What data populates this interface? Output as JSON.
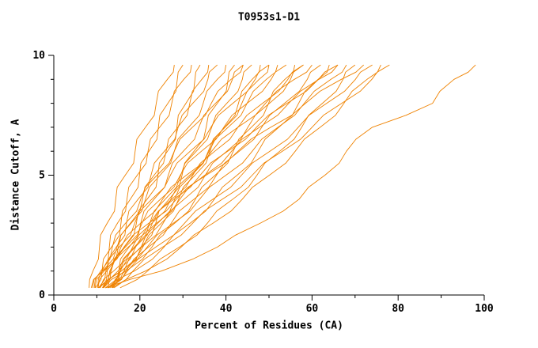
{
  "title": "T0953s1-D1",
  "chart_data": {
    "type": "line",
    "title": "T0953s1-D1",
    "xlabel": "Percent of Residues (CA)",
    "ylabel": "Distance Cutoff, A",
    "xlim": [
      0,
      100
    ],
    "ylim": [
      0,
      10
    ],
    "x_ticks_major": [
      0,
      20,
      40,
      60,
      80,
      100
    ],
    "x_ticks_minor": [
      10,
      30,
      50,
      70,
      90
    ],
    "y_ticks_major": [
      0,
      5,
      10
    ],
    "y_ticks_minor": [
      1,
      2,
      3,
      4,
      6,
      7,
      8,
      9
    ],
    "legend": "none",
    "grid": false,
    "line_color": "#ef8200",
    "background_color": "#ffffff",
    "y_levels": [
      0.3,
      1,
      2,
      3,
      4,
      5,
      6,
      7,
      8,
      9,
      9.6
    ],
    "series_x_at_y": [
      [
        8.2,
        9.1,
        10.6,
        12.4,
        14.4,
        16.6,
        18.9,
        21.3,
        23.8,
        26.4,
        28.0
      ],
      [
        9.7,
        11.2,
        13.4,
        15.6,
        17.8,
        19.9,
        22.1,
        24.3,
        26.5,
        28.7,
        30.0
      ],
      [
        10.2,
        11.2,
        12.9,
        14.8,
        17.0,
        19.4,
        21.9,
        24.6,
        27.4,
        30.2,
        32.0
      ],
      [
        10.4,
        13.2,
        16.4,
        19.2,
        21.7,
        24.2,
        26.4,
        28.6,
        30.7,
        32.8,
        34.0
      ],
      [
        10.3,
        12.3,
        15.0,
        17.8,
        20.6,
        23.3,
        26.1,
        28.8,
        31.6,
        34.4,
        36.0
      ],
      [
        11.3,
        12.4,
        14.5,
        16.9,
        19.6,
        22.6,
        25.7,
        28.9,
        32.3,
        35.8,
        38.0
      ],
      [
        9.0,
        11.3,
        14.7,
        18.0,
        21.3,
        24.7,
        28.0,
        31.3,
        34.7,
        38.0,
        40.0
      ],
      [
        12.8,
        16.3,
        20.2,
        23.7,
        26.8,
        29.8,
        32.6,
        35.4,
        38.0,
        40.5,
        42.0
      ],
      [
        9.4,
        10.9,
        13.6,
        16.7,
        20.2,
        24.0,
        28.0,
        32.2,
        36.6,
        41.2,
        44.0
      ],
      [
        12.6,
        15.1,
        18.7,
        22.3,
        25.9,
        29.5,
        33.1,
        36.7,
        40.2,
        43.8,
        46.0
      ],
      [
        11.4,
        15.7,
        20.7,
        25.0,
        29.0,
        32.8,
        36.3,
        39.7,
        42.9,
        46.1,
        48.0
      ],
      [
        10.4,
        12.1,
        15.2,
        18.8,
        22.8,
        27.1,
        31.7,
        36.5,
        41.6,
        46.8,
        50.0
      ],
      [
        10.8,
        13.9,
        18.3,
        22.8,
        27.2,
        31.6,
        36.1,
        40.5,
        44.9,
        49.4,
        52.0
      ],
      [
        11.5,
        13.3,
        16.6,
        20.5,
        24.8,
        29.4,
        34.3,
        39.5,
        44.9,
        50.5,
        54.0
      ],
      [
        11.6,
        16.8,
        22.8,
        28.1,
        32.9,
        37.5,
        41.7,
        45.9,
        49.9,
        53.7,
        56.0
      ],
      [
        12.0,
        15.4,
        20.4,
        25.4,
        30.3,
        35.2,
        40.2,
        45.1,
        50.1,
        55.0,
        58.0
      ],
      [
        9.6,
        11.7,
        15.6,
        20.2,
        25.3,
        30.8,
        36.7,
        42.8,
        49.2,
        55.9,
        60.0
      ],
      [
        13.1,
        16.8,
        22.0,
        27.3,
        32.6,
        37.8,
        43.1,
        48.3,
        53.6,
        58.9,
        62.0
      ],
      [
        12.6,
        18.7,
        25.6,
        31.7,
        37.3,
        42.6,
        47.5,
        52.3,
        56.9,
        61.4,
        64.0
      ],
      [
        10.6,
        13.0,
        17.3,
        22.3,
        27.9,
        34.0,
        40.4,
        47.1,
        54.2,
        61.5,
        66.0
      ],
      [
        11.3,
        15.6,
        21.7,
        27.8,
        33.9,
        40.0,
        46.1,
        52.1,
        58.2,
        64.4,
        68.0
      ],
      [
        15.4,
        21.8,
        29.2,
        35.7,
        41.6,
        47.2,
        52.5,
        57.6,
        62.4,
        67.2,
        70.0
      ],
      [
        8.7,
        11.4,
        16.3,
        22.1,
        28.5,
        35.4,
        42.8,
        50.4,
        58.5,
        66.8,
        72.0
      ],
      [
        12.5,
        17.1,
        23.7,
        30.4,
        37.0,
        43.6,
        50.2,
        56.8,
        63.4,
        70.1,
        74.0
      ],
      [
        14.0,
        21.3,
        29.6,
        37.0,
        43.8,
        50.1,
        56.1,
        61.9,
        67.4,
        72.8,
        76.0
      ],
      [
        13.6,
        18.4,
        25.3,
        32.3,
        39.2,
        46.1,
        53.1,
        60.0,
        66.9,
        73.9,
        78.0
      ],
      [
        12.6,
        14.9,
        19.0,
        23.9,
        29.3,
        35.1,
        41.3,
        47.8,
        54.6,
        61.6,
        66.0
      ],
      [
        13.5,
        15.4,
        18.9,
        22.9,
        27.4,
        32.3,
        37.4,
        42.8,
        48.5,
        54.4,
        58.0
      ],
      [
        13.7,
        16.4,
        20.3,
        24.2,
        28.1,
        32.0,
        35.9,
        39.8,
        43.7,
        47.7,
        50.0
      ],
      [
        13.8,
        15.1,
        17.5,
        20.2,
        23.3,
        26.6,
        30.1,
        33.7,
        37.6,
        41.5,
        44.0
      ],
      [
        12.0,
        25.0,
        38.0,
        48.0,
        57.0,
        63.0,
        68.0,
        74.0,
        88.0,
        93.0,
        98.0
      ]
    ]
  }
}
